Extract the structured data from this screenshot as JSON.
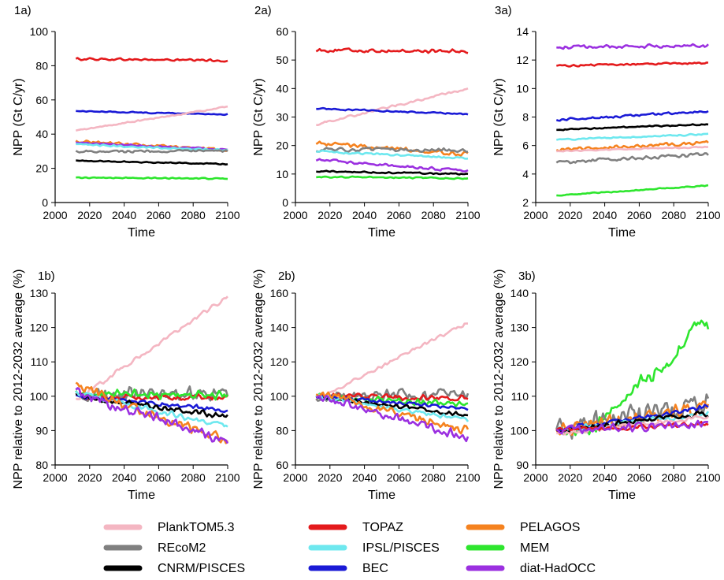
{
  "legend": {
    "entries": [
      {
        "name": "PlankTOM5.3",
        "color": "#f4b6c2"
      },
      {
        "name": "TOPAZ",
        "color": "#e41a1c"
      },
      {
        "name": "PELAGOS",
        "color": "#f5821f"
      },
      {
        "name": "REcoM2",
        "color": "#808080"
      },
      {
        "name": "IPSL/PISCES",
        "color": "#6ee8ef"
      },
      {
        "name": "MEM",
        "color": "#2ee62e"
      },
      {
        "name": "CNRM/PISCES",
        "color": "#000000"
      },
      {
        "name": "BEC",
        "color": "#1a1ad6"
      },
      {
        "name": "diat-HadOCC",
        "color": "#9b30e0"
      }
    ]
  },
  "chart_data": [
    {
      "panel": "1a)",
      "type": "line",
      "xlabel": "Time",
      "ylabel": "NPP (Gt C/yr)",
      "xlim": [
        2000,
        2100
      ],
      "ylim": [
        0,
        100
      ],
      "xticks": [
        2000,
        2020,
        2040,
        2060,
        2080,
        2100
      ],
      "yticks": [
        0,
        20,
        40,
        60,
        80,
        100
      ],
      "series": [
        {
          "name": "TOPAZ",
          "x": [
            2012,
            2100
          ],
          "y": [
            84,
            83
          ],
          "noise": 0.8
        },
        {
          "name": "BEC",
          "x": [
            2012,
            2100
          ],
          "y": [
            53.5,
            51.5
          ],
          "noise": 0.4
        },
        {
          "name": "PlankTOM5.3",
          "x": [
            2012,
            2100
          ],
          "y": [
            42,
            56
          ],
          "noise": 0.5
        },
        {
          "name": "PELAGOS",
          "x": [
            2012,
            2100
          ],
          "y": [
            36,
            30.5
          ],
          "noise": 1.0
        },
        {
          "name": "diat-HadOCC",
          "x": [
            2012,
            2100
          ],
          "y": [
            35,
            31
          ],
          "noise": 0.7
        },
        {
          "name": "IPSL/PISCES",
          "x": [
            2012,
            2100
          ],
          "y": [
            34,
            30.5
          ],
          "noise": 0.6
        },
        {
          "name": "REcoM2",
          "x": [
            2012,
            2100
          ],
          "y": [
            30,
            30
          ],
          "noise": 0.9
        },
        {
          "name": "CNRM/PISCES",
          "x": [
            2012,
            2100
          ],
          "y": [
            24.5,
            22.5
          ],
          "noise": 0.4
        },
        {
          "name": "MEM",
          "x": [
            2012,
            2100
          ],
          "y": [
            14.5,
            14
          ],
          "noise": 0.4
        }
      ]
    },
    {
      "panel": "2a)",
      "type": "line",
      "xlabel": "Time",
      "ylabel": "NPP (Gt C/yr)",
      "xlim": [
        2000,
        2100
      ],
      "ylim": [
        0,
        60
      ],
      "xticks": [
        2000,
        2020,
        2040,
        2060,
        2080,
        2100
      ],
      "yticks": [
        0,
        10,
        20,
        30,
        40,
        50,
        60
      ],
      "series": [
        {
          "name": "TOPAZ",
          "x": [
            2012,
            2100
          ],
          "y": [
            53.5,
            53
          ],
          "noise": 0.8
        },
        {
          "name": "PlankTOM5.3",
          "x": [
            2012,
            2100
          ],
          "y": [
            27.5,
            40
          ],
          "noise": 0.5
        },
        {
          "name": "BEC",
          "x": [
            2012,
            2100
          ],
          "y": [
            33,
            31
          ],
          "noise": 0.3
        },
        {
          "name": "PELAGOS",
          "x": [
            2012,
            2100
          ],
          "y": [
            21,
            17
          ],
          "noise": 0.9
        },
        {
          "name": "REcoM2",
          "x": [
            2012,
            2100
          ],
          "y": [
            18.5,
            18.5
          ],
          "noise": 0.8
        },
        {
          "name": "IPSL/PISCES",
          "x": [
            2012,
            2100
          ],
          "y": [
            18,
            15.5
          ],
          "noise": 0.4
        },
        {
          "name": "diat-HadOCC",
          "x": [
            2012,
            2100
          ],
          "y": [
            15,
            11
          ],
          "noise": 0.6
        },
        {
          "name": "CNRM/PISCES",
          "x": [
            2012,
            2100
          ],
          "y": [
            11,
            10
          ],
          "noise": 0.3
        },
        {
          "name": "MEM",
          "x": [
            2012,
            2100
          ],
          "y": [
            9,
            8.5
          ],
          "noise": 0.3
        }
      ]
    },
    {
      "panel": "3a)",
      "type": "line",
      "xlabel": "Time",
      "ylabel": "NPP (Gt C/yr)",
      "xlim": [
        2000,
        2100
      ],
      "ylim": [
        2,
        14
      ],
      "xticks": [
        2000,
        2020,
        2040,
        2060,
        2080,
        2100
      ],
      "yticks": [
        2,
        4,
        6,
        8,
        10,
        12,
        14
      ],
      "series": [
        {
          "name": "diat-HadOCC",
          "x": [
            2012,
            2100
          ],
          "y": [
            12.9,
            13
          ],
          "noise": 0.15
        },
        {
          "name": "TOPAZ",
          "x": [
            2012,
            2100
          ],
          "y": [
            11.6,
            11.8
          ],
          "noise": 0.08
        },
        {
          "name": "BEC",
          "x": [
            2012,
            2100
          ],
          "y": [
            7.8,
            8.4
          ],
          "noise": 0.1
        },
        {
          "name": "CNRM/PISCES",
          "x": [
            2012,
            2100
          ],
          "y": [
            7.1,
            7.5
          ],
          "noise": 0.06
        },
        {
          "name": "IPSL/PISCES",
          "x": [
            2012,
            2100
          ],
          "y": [
            6.4,
            6.8
          ],
          "noise": 0.06
        },
        {
          "name": "PELAGOS",
          "x": [
            2012,
            2100
          ],
          "y": [
            5.7,
            6.2
          ],
          "noise": 0.15
        },
        {
          "name": "PlankTOM5.3",
          "x": [
            2012,
            2100
          ],
          "y": [
            5.6,
            5.9
          ],
          "noise": 0.05
        },
        {
          "name": "REcoM2",
          "x": [
            2012,
            2100
          ],
          "y": [
            4.8,
            5.4
          ],
          "noise": 0.15
        },
        {
          "name": "MEM",
          "x": [
            2012,
            2100
          ],
          "y": [
            2.5,
            3.2
          ],
          "noise": 0.05
        }
      ]
    },
    {
      "panel": "1b)",
      "type": "line",
      "xlabel": "Time",
      "ylabel": "NPP relative to 2012-2032 average (%)",
      "xlim": [
        2000,
        2100
      ],
      "ylim": [
        80,
        130
      ],
      "xticks": [
        2000,
        2020,
        2040,
        2060,
        2080,
        2100
      ],
      "yticks": [
        80,
        90,
        100,
        110,
        120,
        130
      ],
      "series": [
        {
          "name": "PlankTOM5.3",
          "x": [
            2012,
            2100
          ],
          "y": [
            99,
            129
          ],
          "noise": 0.8
        },
        {
          "name": "REcoM2",
          "x": [
            2012,
            2100
          ],
          "y": [
            100,
            101
          ],
          "noise": 2.5
        },
        {
          "name": "TOPAZ",
          "x": [
            2012,
            2100
          ],
          "y": [
            100,
            99.5
          ],
          "noise": 1.0
        },
        {
          "name": "MEM",
          "x": [
            2012,
            2100
          ],
          "y": [
            101,
            100
          ],
          "noise": 1.5
        },
        {
          "name": "BEC",
          "x": [
            2012,
            2100
          ],
          "y": [
            100,
            96
          ],
          "noise": 0.8
        },
        {
          "name": "CNRM/PISCES",
          "x": [
            2012,
            2100
          ],
          "y": [
            100,
            94
          ],
          "noise": 1.0
        },
        {
          "name": "IPSL/PISCES",
          "x": [
            2012,
            2100
          ],
          "y": [
            101,
            91
          ],
          "noise": 1.0
        },
        {
          "name": "PELAGOS",
          "x": [
            2012,
            2100
          ],
          "y": [
            103,
            87
          ],
          "noise": 2.0
        },
        {
          "name": "diat-HadOCC",
          "x": [
            2012,
            2100
          ],
          "y": [
            101,
            87
          ],
          "noise": 1.8
        }
      ]
    },
    {
      "panel": "2b)",
      "type": "line",
      "xlabel": "Time",
      "ylabel": "NPP relative to 2012-2032 average (%)",
      "xlim": [
        2000,
        2100
      ],
      "ylim": [
        60,
        160
      ],
      "xticks": [
        2000,
        2020,
        2040,
        2060,
        2080,
        2100
      ],
      "yticks": [
        60,
        80,
        100,
        120,
        140,
        160
      ],
      "series": [
        {
          "name": "PlankTOM5.3",
          "x": [
            2012,
            2100
          ],
          "y": [
            98,
            143
          ],
          "noise": 1.2
        },
        {
          "name": "REcoM2",
          "x": [
            2012,
            2100
          ],
          "y": [
            100,
            101
          ],
          "noise": 4.0
        },
        {
          "name": "TOPAZ",
          "x": [
            2012,
            2100
          ],
          "y": [
            100,
            99
          ],
          "noise": 2.0
        },
        {
          "name": "MEM",
          "x": [
            2012,
            2100
          ],
          "y": [
            100,
            95
          ],
          "noise": 2.0
        },
        {
          "name": "BEC",
          "x": [
            2012,
            2100
          ],
          "y": [
            100,
            93
          ],
          "noise": 1.2
        },
        {
          "name": "CNRM/PISCES",
          "x": [
            2012,
            2100
          ],
          "y": [
            100,
            89
          ],
          "noise": 1.5
        },
        {
          "name": "IPSL/PISCES",
          "x": [
            2012,
            2100
          ],
          "y": [
            100,
            86
          ],
          "noise": 1.5
        },
        {
          "name": "PELAGOS",
          "x": [
            2012,
            2100
          ],
          "y": [
            102,
            80
          ],
          "noise": 3.0
        },
        {
          "name": "diat-HadOCC",
          "x": [
            2012,
            2100
          ],
          "y": [
            100,
            76
          ],
          "noise": 3.0
        }
      ]
    },
    {
      "panel": "3b)",
      "type": "line",
      "xlabel": "Time",
      "ylabel": "NPP relative to 2012-2032 average (%)",
      "xlim": [
        2000,
        2100
      ],
      "ylim": [
        90,
        140
      ],
      "xticks": [
        2000,
        2020,
        2040,
        2060,
        2080,
        2100
      ],
      "yticks": [
        90,
        100,
        110,
        120,
        130,
        140
      ],
      "series": [
        {
          "name": "MEM",
          "x": [
            2012,
            2035,
            2060,
            2080,
            2095,
            2100
          ],
          "y": [
            100,
            101,
            114,
            121,
            132,
            130.5
          ],
          "noise": 2.5
        },
        {
          "name": "REcoM2",
          "x": [
            2012,
            2100
          ],
          "y": [
            100,
            108
          ],
          "noise": 4.0
        },
        {
          "name": "PELAGOS",
          "x": [
            2012,
            2100
          ],
          "y": [
            100,
            107
          ],
          "noise": 2.5
        },
        {
          "name": "BEC",
          "x": [
            2012,
            2100
          ],
          "y": [
            100,
            107
          ],
          "noise": 1.0
        },
        {
          "name": "IPSL/PISCES",
          "x": [
            2012,
            2100
          ],
          "y": [
            100,
            105
          ],
          "noise": 1.0
        },
        {
          "name": "CNRM/PISCES",
          "x": [
            2012,
            2100
          ],
          "y": [
            100,
            105
          ],
          "noise": 1.0
        },
        {
          "name": "PlankTOM5.3",
          "x": [
            2012,
            2100
          ],
          "y": [
            99,
            104
          ],
          "noise": 0.8
        },
        {
          "name": "TOPAZ",
          "x": [
            2012,
            2100
          ],
          "y": [
            100,
            102
          ],
          "noise": 0.8
        },
        {
          "name": "diat-HadOCC",
          "x": [
            2012,
            2100
          ],
          "y": [
            100,
            102
          ],
          "noise": 1.5
        }
      ]
    }
  ]
}
